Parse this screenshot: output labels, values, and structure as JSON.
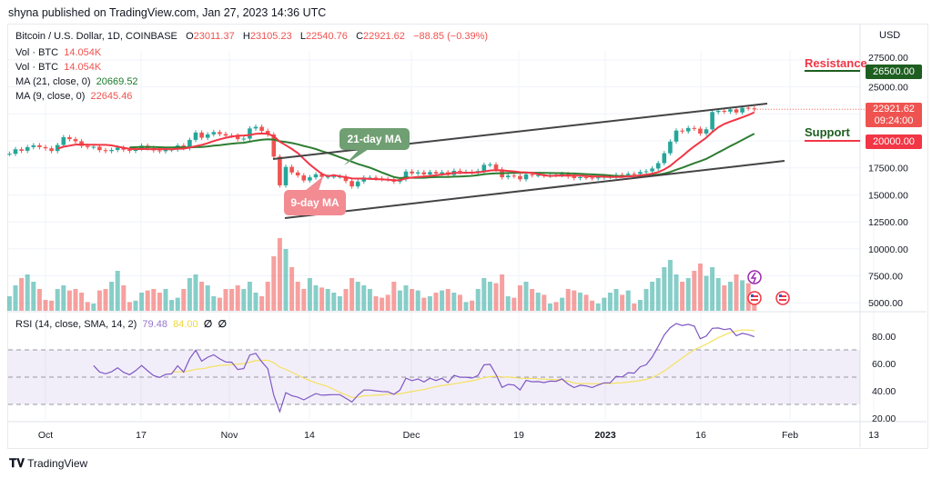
{
  "header": {
    "published": "shyna published on TradingView.com, Jan 27, 2023 14:36 UTC"
  },
  "legend": {
    "symbol": "Bitcoin / U.S. Dollar, 1D, COINBASE",
    "o_label": "O",
    "o": "23011.37",
    "h_label": "H",
    "h": "23105.23",
    "l_label": "L",
    "l": "22540.76",
    "c_label": "C",
    "c": "22921.62",
    "change": "−88.85 (−0.39%)",
    "vol1_label": "Vol · BTC",
    "vol1": "14.054K",
    "vol2_label": "Vol · BTC",
    "vol2": "14.054K",
    "ma21_label": "MA (21, close, 0)",
    "ma21": "20669.52",
    "ma9_label": "MA (9, close, 0)",
    "ma9": "22645.46",
    "rsi_label": "RSI (14, close, SMA, 14, 2)",
    "rsi": "79.48",
    "rsi_sma": "84.00",
    "rsi_extra1": "∅",
    "rsi_extra2": "∅"
  },
  "annotations": {
    "ma21": "21-day MA",
    "ma9": "9-day MA",
    "resistance": "Resistance",
    "support": "Support",
    "resistance_price": "26500.00",
    "support_price": "20000.00",
    "last_price": "22921.62",
    "countdown": "09:24:00"
  },
  "footer": {
    "logo": "TradingView"
  },
  "colors": {
    "up": "#26a69a",
    "down": "#ef5350",
    "ma21": "#2e7d32",
    "ma9": "#f23645",
    "rsi": "#7e57c2",
    "rsi_sma": "#f5e15f",
    "resistance_box": "#1e5e20",
    "support_box": "#f23645"
  },
  "icons": [
    "lightning-icon",
    "us-flag-icon",
    "us-flag-icon"
  ],
  "chart_data": {
    "type": "candlestick",
    "start_date": "2022-09-25",
    "closes": [
      18800,
      19220,
      19080,
      19420,
      19590,
      19420,
      19310,
      19060,
      19620,
      20340,
      20160,
      19960,
      19530,
      19420,
      19450,
      19140,
      19050,
      19160,
      19380,
      19180,
      19070,
      19270,
      19550,
      19330,
      19120,
      19040,
      19170,
      19200,
      19570,
      19330,
      20090,
      20770,
      20290,
      20600,
      20810,
      20630,
      20490,
      20480,
      20160,
      20210,
      21150,
      21300,
      20920,
      20590,
      18540,
      15880,
      17590,
      17070,
      16800,
      16330,
      16620,
      16900,
      16660,
      16690,
      16700,
      16700,
      16280,
      15780,
      16230,
      16600,
      16600,
      16520,
      16460,
      16440,
      16220,
      16440,
      17160,
      16980,
      17090,
      16890,
      17110,
      16970,
      17090,
      16840,
      17230,
      17130,
      17130,
      17090,
      17210,
      17780,
      17810,
      17360,
      16630,
      16780,
      16740,
      16440,
      16900,
      16820,
      16830,
      16780,
      16840,
      16830,
      16920,
      16700,
      16550,
      16630,
      16600,
      16540,
      16610,
      16670,
      16670,
      16850,
      16830,
      16950,
      16940,
      17120,
      17180,
      17440,
      17940,
      18850,
      19930,
      20950,
      20880,
      21190,
      21130,
      20680,
      21070,
      22670,
      22780,
      22710,
      22920,
      22630,
      23060,
      23010,
      22921.62
    ],
    "volumes_k": [
      20,
      35,
      45,
      50,
      40,
      30,
      15,
      14,
      30,
      35,
      28,
      30,
      25,
      12,
      10,
      28,
      30,
      40,
      55,
      35,
      12,
      14,
      25,
      28,
      30,
      25,
      30,
      15,
      18,
      30,
      45,
      50,
      40,
      35,
      20,
      18,
      30,
      30,
      35,
      30,
      40,
      25,
      20,
      40,
      75,
      100,
      85,
      60,
      40,
      30,
      45,
      35,
      32,
      30,
      25,
      20,
      30,
      45,
      40,
      35,
      30,
      20,
      18,
      22,
      40,
      28,
      35,
      30,
      28,
      18,
      20,
      25,
      28,
      30,
      25,
      22,
      12,
      14,
      30,
      45,
      40,
      38,
      50,
      20,
      18,
      35,
      40,
      30,
      25,
      22,
      10,
      12,
      18,
      30,
      28,
      25,
      22,
      14,
      10,
      18,
      25,
      30,
      22,
      28,
      10,
      15,
      30,
      40,
      45,
      60,
      70,
      50,
      40,
      45,
      55,
      65,
      48,
      60,
      45,
      35,
      40,
      50,
      42,
      38,
      14.054
    ],
    "price_axis": {
      "label": "USD",
      "ticks": [
        "27500.00",
        "25000.00",
        "22500.00",
        "20000.00",
        "17500.00",
        "15000.00",
        "12500.00",
        "10000.00",
        "7500.00",
        "5000.00"
      ]
    },
    "rsi_axis": {
      "ticks": [
        "80.00",
        "60.00",
        "40.00",
        "20.00"
      ],
      "upper_band": 70,
      "lower_band": 30
    },
    "x_ticks": [
      "Oct",
      "17",
      "Nov",
      "14",
      "Dec",
      "19",
      "2023",
      "16",
      "Feb",
      "13"
    ],
    "moving_averages": [
      21,
      9
    ],
    "resistance": 26500,
    "support": 20000,
    "trendlines": "ascending channel"
  }
}
